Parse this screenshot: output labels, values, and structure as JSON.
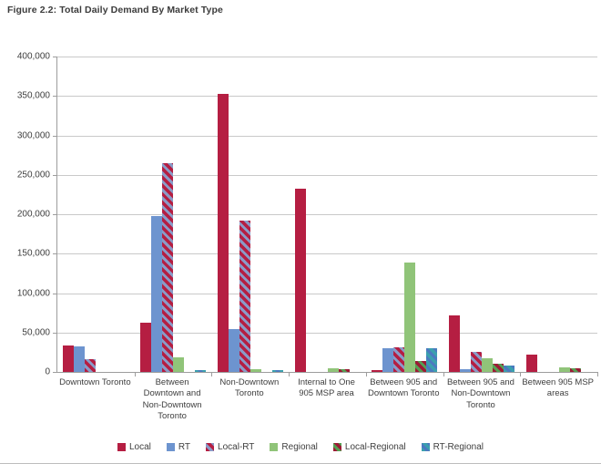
{
  "page": {
    "figure_title": "Figure 2.2: Total Daily Demand By Market Type"
  },
  "chart_data": {
    "type": "bar",
    "title": "Figure 2.2: Total Daily Demand By Market Type",
    "xlabel": "",
    "ylabel": "",
    "ylim": [
      0,
      400000
    ],
    "ytick_step": 50000,
    "ytick_labels": [
      "400,000",
      "350,000",
      "300,000",
      "250,000",
      "200,000",
      "150,000",
      "100,000",
      "50,000",
      "0"
    ],
    "grid": true,
    "legend_position": "bottom",
    "categories": [
      "Downtown Toronto",
      "Between Downtown and Non-Downtown Toronto",
      "Non-Downtown Toronto",
      "Internal to One 905 MSP area",
      "Between 905 and Downtown Toronto",
      "Between 905 and Non-Downtown Toronto",
      "Between 905 MSP areas"
    ],
    "series": [
      {
        "name": "Local",
        "style": {
          "fill": "#b51e42",
          "pattern": "solid"
        },
        "values": [
          33000,
          62000,
          353000,
          232000,
          2000,
          72000,
          22000
        ]
      },
      {
        "name": "RT",
        "style": {
          "fill": "#6d94cf",
          "pattern": "solid"
        },
        "values": [
          32000,
          198000,
          54000,
          0,
          30000,
          4000,
          0
        ]
      },
      {
        "name": "Local-RT",
        "style": {
          "fill": "#b51e42",
          "pattern": "hatch",
          "hatch": "#8a9bc8"
        },
        "values": [
          16000,
          265000,
          192000,
          0,
          31000,
          25000,
          0
        ]
      },
      {
        "name": "Regional",
        "style": {
          "fill": "#90c479",
          "pattern": "solid"
        },
        "values": [
          0,
          18000,
          3000,
          5000,
          139000,
          17000,
          6000
        ]
      },
      {
        "name": "Local-Regional",
        "style": {
          "fill": "#9c1b35",
          "pattern": "hatch",
          "hatch": "#55a054"
        },
        "values": [
          0,
          0,
          0,
          3000,
          14000,
          10000,
          5000
        ]
      },
      {
        "name": "RT-Regional",
        "style": {
          "fill": "#3ba0ae",
          "pattern": "hatch",
          "hatch": "#4c79c0"
        },
        "values": [
          0,
          2000,
          2000,
          0,
          30000,
          8000,
          0
        ]
      }
    ]
  }
}
